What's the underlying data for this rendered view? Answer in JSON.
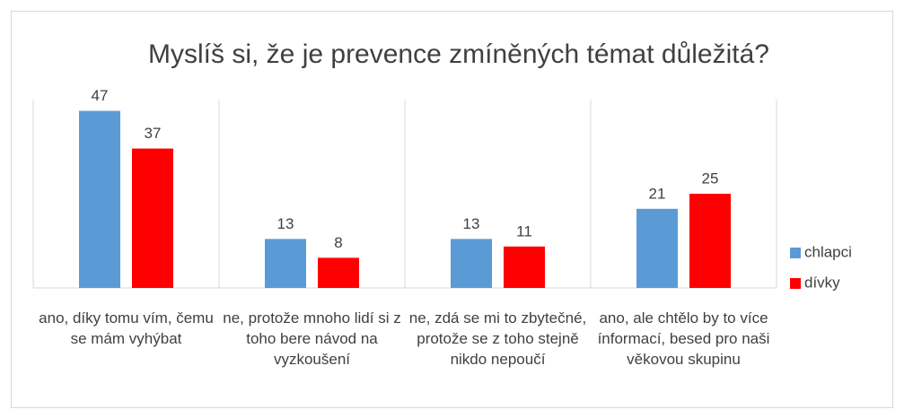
{
  "chart_data": {
    "type": "bar",
    "title": "Myslíš si, že je prevence zmíněných témat důležitá?",
    "categories": [
      "ano, díky tomu vím, čemu se mám vyhýbat",
      "ne, protože mnoho lidí si z toho bere návod na vyzkoušení",
      "ne, zdá se mi to zbytečné, protože se z toho stejně nikdo nepoučí",
      "ano, ale chtělo by to více ínformací, besed pro naši věkovou skupinu"
    ],
    "series": [
      {
        "name": "chlapci",
        "color": "#5b9bd5",
        "values": [
          47,
          13,
          13,
          21
        ]
      },
      {
        "name": "dívky",
        "color": "#ff0000",
        "values": [
          37,
          8,
          11,
          25
        ]
      }
    ],
    "ylim": [
      0,
      50
    ],
    "legend": "right"
  }
}
